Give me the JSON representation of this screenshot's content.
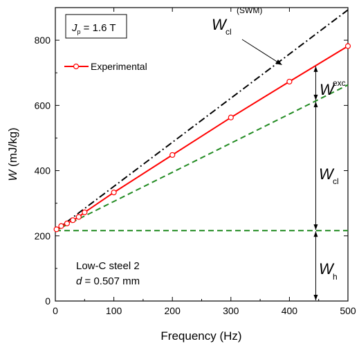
{
  "chart_data": {
    "type": "line",
    "xlabel": "Frequency (Hz)",
    "ylabel_main": "W",
    "ylabel_unit": " (mJ/kg)",
    "xlim": [
      0,
      500
    ],
    "ylim": [
      0,
      900
    ],
    "xticks": [
      0,
      100,
      200,
      300,
      400,
      500
    ],
    "yticks": [
      0,
      200,
      400,
      600,
      800
    ],
    "grid": false,
    "legend": {
      "position": "top-left",
      "label": "Experimental"
    },
    "condition_box": {
      "symbol": "J",
      "subscript": "p",
      "text": " = 1.6 T"
    },
    "sample_text": {
      "line1": "Low-C steel 2",
      "line2_symbol": "d",
      "line2_rest": " = 0.507 mm"
    },
    "series": [
      {
        "name": "Experimental",
        "color": "#ff0000",
        "style": "solid-with-open-circles",
        "x": [
          2,
          10,
          20,
          30,
          40,
          50,
          100,
          200,
          300,
          400,
          500
        ],
        "y": [
          220,
          230,
          238,
          248,
          258,
          272,
          333,
          448,
          563,
          673,
          782
        ]
      },
      {
        "color": "#000000",
        "style": "dash-dot",
        "x": [
          0,
          500
        ],
        "y": [
          216,
          893
        ]
      },
      {
        "color": "#228b22",
        "style": "dashed",
        "x": [
          0,
          500
        ],
        "y": [
          216,
          663
        ]
      },
      {
        "color": "#228b22",
        "style": "dashed",
        "x": [
          0,
          500
        ],
        "y": [
          216,
          216
        ]
      }
    ],
    "annotations": {
      "wcl_swm": {
        "main": "W",
        "sub": "cl",
        "sup": "(SWM)"
      },
      "wexc": {
        "main": "W",
        "sub": "exc"
      },
      "wcl": {
        "main": "W",
        "sub": "cl"
      },
      "wh": {
        "main": "W",
        "sub": "h"
      },
      "marker_x": 445
    }
  }
}
